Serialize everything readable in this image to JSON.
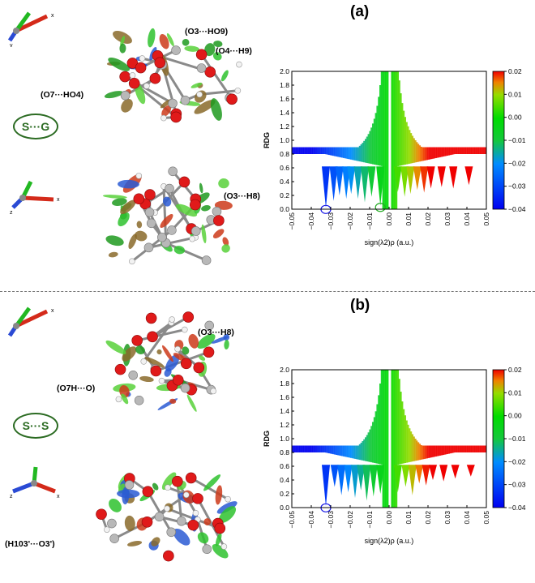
{
  "panels": [
    {
      "label": "(a)",
      "complex": "S···G",
      "hbond_labels": [
        "(O3···HO9)",
        "(O4···H9)",
        "(O7···HO4)",
        "(O3···H8)"
      ]
    },
    {
      "label": "(b)",
      "complex": "S···S",
      "hbond_labels": [
        "(O3···H8)",
        "(O7H···O)",
        "(H103'···O3')"
      ]
    }
  ],
  "axis_glyphs": [
    "x",
    "y",
    "z"
  ],
  "colors": {
    "blue": "#1a1ae6",
    "green": "#22cc22",
    "red": "#e61a1a",
    "label_green": "#2b6b22"
  },
  "chart_data": [
    {
      "type": "scatter",
      "title": "",
      "xlabel": "sign(λ2)ρ (a.u.)",
      "ylabel": "RDG",
      "xlim": [
        -0.05,
        0.05
      ],
      "ylim": [
        0,
        2.0
      ],
      "xticks": [
        "-0.05",
        "-0.04",
        "-0.03",
        "-0.02",
        "-0.01",
        "0.00",
        "0.01",
        "0.02",
        "0.03",
        "0.04",
        "0.05"
      ],
      "yticks": [
        "0.0",
        "0.2",
        "0.4",
        "0.6",
        "0.8",
        "1.0",
        "1.2",
        "1.4",
        "1.6",
        "1.8",
        "2.0"
      ],
      "colorbar": {
        "min": -0.04,
        "max": 0.02,
        "ticks": [
          "0.02",
          "0.01",
          "0.00",
          "-0.01",
          "-0.02",
          "-0.03",
          "-0.04"
        ]
      },
      "grid": false,
      "spikes": [
        [
          -0.0325,
          0.02
        ],
        [
          -0.0285,
          0.12
        ],
        [
          -0.0255,
          0.2
        ],
        [
          -0.022,
          0.15
        ],
        [
          -0.0195,
          0.22
        ],
        [
          -0.016,
          0.15
        ],
        [
          -0.0125,
          0.1
        ],
        [
          -0.009,
          0.18
        ],
        [
          -0.0045,
          0.05
        ],
        [
          0.0045,
          0.25
        ],
        [
          0.008,
          0.18
        ],
        [
          0.011,
          0.22
        ],
        [
          0.0145,
          0.28
        ],
        [
          0.018,
          0.24
        ],
        [
          0.0215,
          0.3
        ],
        [
          0.027,
          0.32
        ],
        [
          0.033,
          0.3
        ],
        [
          0.041,
          0.35
        ]
      ],
      "highlighted": [
        [
          -0.0325,
          0.02
        ],
        [
          -0.0045,
          0.05
        ]
      ]
    },
    {
      "type": "scatter",
      "title": "",
      "xlabel": "sign(λ2)ρ (a.u.)",
      "ylabel": "RDG",
      "xlim": [
        -0.05,
        0.05
      ],
      "ylim": [
        0,
        2.0
      ],
      "xticks": [
        "-0.05",
        "-0.04",
        "-0.03",
        "-0.02",
        "-0.01",
        "0.00",
        "0.01",
        "0.02",
        "0.03",
        "0.04",
        "0.05"
      ],
      "yticks": [
        "0.0",
        "0.2",
        "0.4",
        "0.6",
        "0.8",
        "1.0",
        "1.2",
        "1.4",
        "1.6",
        "1.8",
        "2.0"
      ],
      "colorbar": {
        "min": -0.04,
        "max": 0.02,
        "ticks": [
          "0.02",
          "0.01",
          "0.00",
          "-0.01",
          "-0.02",
          "-0.03",
          "-0.04"
        ]
      },
      "grid": false,
      "spikes": [
        [
          -0.0325,
          0.02
        ],
        [
          -0.028,
          0.3
        ],
        [
          -0.0245,
          0.18
        ],
        [
          -0.021,
          0.22
        ],
        [
          -0.0175,
          0.14
        ],
        [
          -0.0145,
          0.25
        ],
        [
          -0.0115,
          0.1
        ],
        [
          -0.008,
          0.16
        ],
        [
          -0.0045,
          0.2
        ],
        [
          0.0045,
          0.22
        ],
        [
          0.0085,
          0.3
        ],
        [
          0.012,
          0.18
        ],
        [
          0.0155,
          0.35
        ],
        [
          0.019,
          0.32
        ],
        [
          0.0225,
          0.4
        ],
        [
          0.028,
          0.38
        ],
        [
          0.034,
          0.42
        ],
        [
          0.042,
          0.45
        ]
      ],
      "highlighted": [
        [
          -0.0325,
          0.02
        ]
      ]
    }
  ]
}
